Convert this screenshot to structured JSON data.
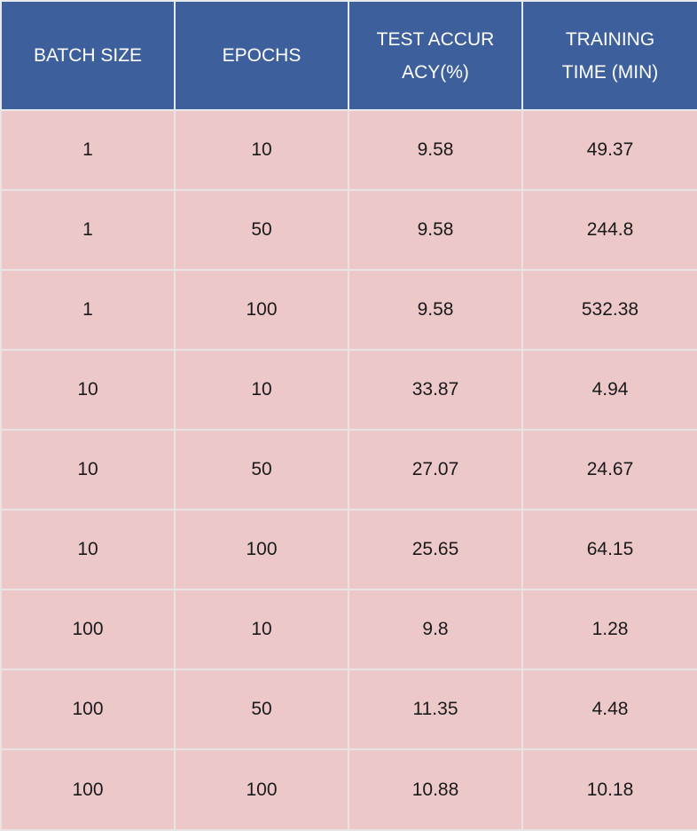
{
  "chart_data": {
    "type": "table",
    "columns": [
      "BATCH SIZE",
      "EPOCHS",
      "TEST ACCURACY(%)",
      "TRAINING TIME (MIN)"
    ],
    "rows": [
      [
        "1",
        "10",
        "9.58",
        "49.37"
      ],
      [
        "1",
        "50",
        "9.58",
        "244.8"
      ],
      [
        "1",
        "100",
        "9.58",
        "532.38"
      ],
      [
        "10",
        "10",
        "33.87",
        "4.94"
      ],
      [
        "10",
        "50",
        "27.07",
        "24.67"
      ],
      [
        "10",
        "100",
        "25.65",
        "64.15"
      ],
      [
        "100",
        "10",
        "9.8",
        "1.28"
      ],
      [
        "100",
        "50",
        "11.35",
        "4.48"
      ],
      [
        "100",
        "100",
        "10.88",
        "10.18"
      ]
    ]
  },
  "colors": {
    "header_bg": "#3d5f9b",
    "header_text": "#ffffff",
    "cell_bg": "#ecc8c9",
    "cell_text": "#1a1a1a",
    "grid": "#e6e9ef"
  }
}
